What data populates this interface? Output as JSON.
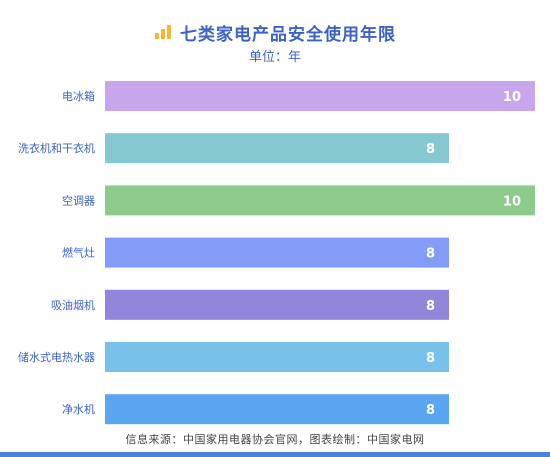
{
  "header": {
    "title": "七类家电产品安全使用年限",
    "subtitle": "单位：年"
  },
  "footer": {
    "source": "信息来源：中国家用电器协会官网，图表绘制：中国家电网"
  },
  "colors": {
    "title": "#3b62c4",
    "category_label": "#3b62c4",
    "value_label": "#ffffff",
    "icon": "#f5b833"
  },
  "chart_data": {
    "type": "bar",
    "orientation": "horizontal",
    "categories": [
      "电冰箱",
      "洗衣机和干衣机",
      "空调器",
      "燃气灶",
      "吸油烟机",
      "储水式电热水器",
      "净水机"
    ],
    "values": [
      10,
      8,
      10,
      8,
      8,
      8,
      8
    ],
    "bar_colors": [
      "#c8a6ec",
      "#86c8d0",
      "#8dcb8c",
      "#829cf8",
      "#9186dc",
      "#78c2ea",
      "#5aa6f2"
    ],
    "title": "七类家电产品安全使用年限",
    "subtitle": "单位：年",
    "xlim": [
      0,
      10
    ],
    "grid": false,
    "legend": "none",
    "data_labels": true
  }
}
